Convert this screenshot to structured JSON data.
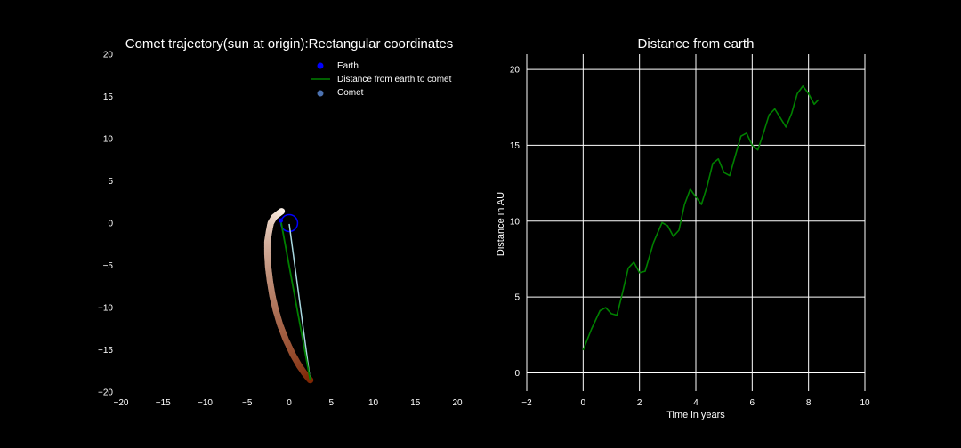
{
  "chart_data": [
    {
      "type": "scatter",
      "title": "Comet trajectory(sun at origin):Rectangular coordinates",
      "xlabel": "",
      "ylabel": "",
      "xlim": [
        -20,
        20
      ],
      "ylim": [
        -20,
        20
      ],
      "x_ticks": [
        -20,
        -15,
        -10,
        -5,
        0,
        5,
        10,
        15,
        20
      ],
      "y_ticks": [
        -20,
        -15,
        -10,
        -5,
        0,
        5,
        10,
        15,
        20
      ],
      "x_tick_labels": [
        "−20",
        "−15",
        "−10",
        "−5",
        "0",
        "5",
        "10",
        "15",
        "20"
      ],
      "y_tick_labels": [
        "−20",
        "−15",
        "−10",
        "−5",
        "0",
        "5",
        "10",
        "15",
        "20"
      ],
      "grid": false,
      "legend_position": "top-right",
      "legend": [
        {
          "label": "Earth",
          "kind": "point",
          "color": "#0000ff"
        },
        {
          "label": "Distance from earth to comet",
          "kind": "line",
          "color": "#008000"
        },
        {
          "label": "Comet",
          "kind": "point",
          "color": "#4c72b0"
        }
      ],
      "earth_orbit": {
        "center": [
          0,
          0
        ],
        "radius": 1.0,
        "color": "#0000ff"
      },
      "comet_path": [
        [
          -0.9,
          1.4
        ],
        [
          -1.3,
          1.1
        ],
        [
          -1.8,
          0.7
        ],
        [
          -2.2,
          0.0
        ],
        [
          -2.4,
          -1.0
        ],
        [
          -2.6,
          -2.2
        ],
        [
          -2.6,
          -3.6
        ],
        [
          -2.5,
          -5.2
        ],
        [
          -2.3,
          -6.8
        ],
        [
          -2.0,
          -8.6
        ],
        [
          -1.6,
          -10.3
        ],
        [
          -1.1,
          -12.0
        ],
        [
          -0.4,
          -13.8
        ],
        [
          0.4,
          -15.5
        ],
        [
          1.2,
          -16.9
        ],
        [
          1.9,
          -17.9
        ],
        [
          2.5,
          -18.6
        ]
      ],
      "comet_color_start": "#fff5eb",
      "comet_color_end": "#7f2704",
      "earth_position": [
        -1.0,
        0.3
      ],
      "earth_to_comet_line": {
        "from": [
          -1.0,
          0.3
        ],
        "to": [
          2.5,
          -18.6
        ],
        "color": "#008000"
      },
      "secondary_line": {
        "from": [
          0.0,
          -0.1
        ],
        "to": [
          2.5,
          -18.6
        ],
        "color": "#a8d8e0"
      }
    },
    {
      "type": "line",
      "title": "Distance from earth",
      "xlabel": "Time in years",
      "ylabel": "Distance in AU",
      "xlim": [
        -2,
        10
      ],
      "ylim": [
        -1.2,
        21
      ],
      "x_ticks": [
        -2,
        0,
        2,
        4,
        6,
        8,
        10
      ],
      "y_ticks": [
        0,
        5,
        10,
        15,
        20
      ],
      "x_tick_labels": [
        "−2",
        "0",
        "2",
        "4",
        "6",
        "8",
        "10"
      ],
      "y_tick_labels": [
        "0",
        "5",
        "10",
        "15",
        "20"
      ],
      "grid": true,
      "series": [
        {
          "color": "#008000",
          "x": [
            0,
            0.3,
            0.6,
            0.8,
            1.0,
            1.2,
            1.4,
            1.6,
            1.8,
            2.0,
            2.2,
            2.5,
            2.8,
            3.0,
            3.2,
            3.4,
            3.6,
            3.8,
            4.0,
            4.2,
            4.4,
            4.6,
            4.8,
            5.0,
            5.2,
            5.4,
            5.6,
            5.8,
            6.0,
            6.2,
            6.4,
            6.6,
            6.8,
            7.0,
            7.2,
            7.4,
            7.6,
            7.8,
            8.0,
            8.2,
            8.35
          ],
          "y": [
            1.5,
            2.9,
            4.1,
            4.3,
            3.9,
            3.8,
            5.3,
            6.9,
            7.3,
            6.6,
            6.7,
            8.6,
            9.9,
            9.7,
            9.0,
            9.4,
            11.1,
            12.1,
            11.6,
            11.1,
            12.3,
            13.8,
            14.1,
            13.2,
            13.0,
            14.3,
            15.6,
            15.8,
            15.0,
            14.7,
            15.8,
            17.0,
            17.4,
            16.8,
            16.2,
            17.1,
            18.4,
            18.9,
            18.4,
            17.7,
            18.0
          ]
        }
      ]
    }
  ]
}
